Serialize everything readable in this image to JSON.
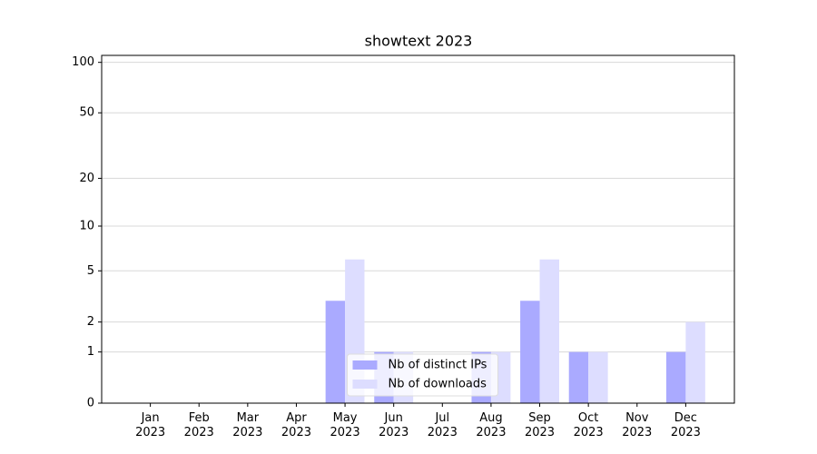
{
  "chart_data": {
    "type": "bar",
    "title": "showtext 2023",
    "categories": [
      "Jan\n2023",
      "Feb\n2023",
      "Mar\n2023",
      "Apr\n2023",
      "May\n2023",
      "Jun\n2023",
      "Jul\n2023",
      "Aug\n2023",
      "Sep\n2023",
      "Oct\n2023",
      "Nov\n2023",
      "Dec\n2023"
    ],
    "series": [
      {
        "name": "Nb of distinct IPs",
        "color": "#aaaaff",
        "values": [
          0,
          0,
          0,
          0,
          3,
          1,
          0,
          1,
          3,
          1,
          0,
          1
        ]
      },
      {
        "name": "Nb of downloads",
        "color": "#ddddff",
        "values": [
          0,
          0,
          0,
          0,
          6,
          1,
          0,
          1,
          6,
          1,
          0,
          2
        ]
      }
    ],
    "yscale": "log1p",
    "ylim": [
      0,
      110
    ],
    "yticks": [
      0,
      1,
      2,
      5,
      10,
      20,
      50,
      100
    ],
    "grid": true,
    "legend": "lower center"
  }
}
